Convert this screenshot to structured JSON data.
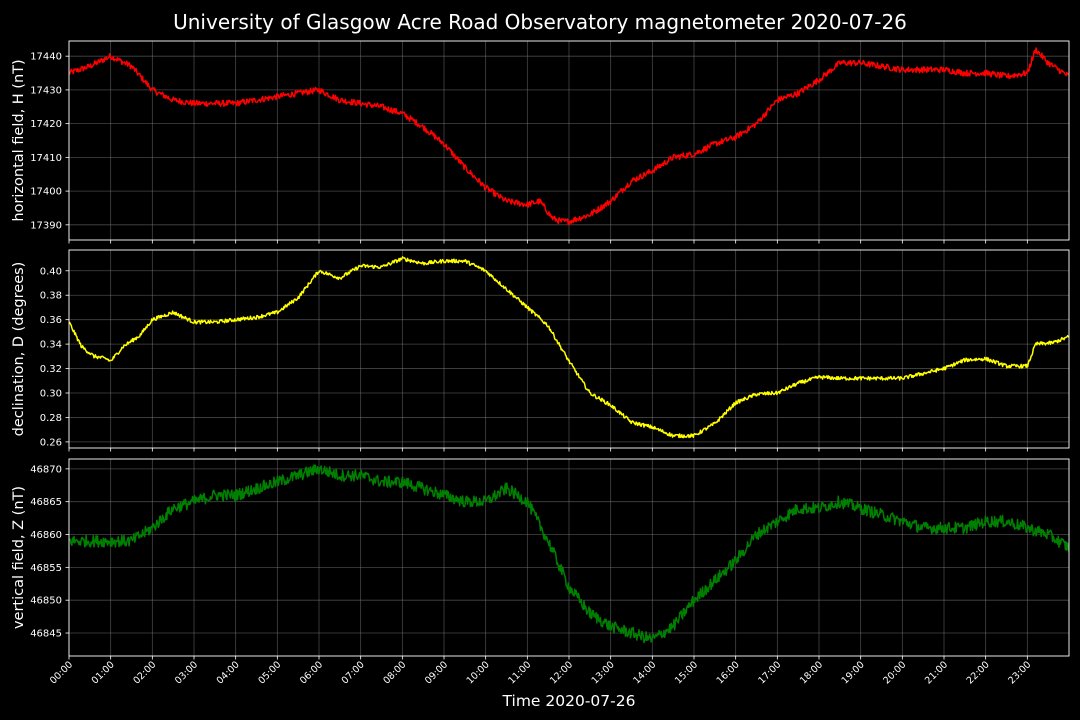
{
  "title": "University of Glasgow Acre Road Observatory magnetometer 2020-07-26",
  "xlabel": "Time 2020-07-26",
  "x_ticks": [
    "00:00",
    "01:00",
    "02:00",
    "03:00",
    "04:00",
    "05:00",
    "06:00",
    "07:00",
    "08:00",
    "09:00",
    "10:00",
    "11:00",
    "12:00",
    "13:00",
    "14:00",
    "15:00",
    "16:00",
    "17:00",
    "18:00",
    "19:00",
    "20:00",
    "21:00",
    "22:00",
    "23:00"
  ],
  "chart_data": [
    {
      "type": "line",
      "ylabel": "horizontal field, H (nT)",
      "ylim": [
        17385.5,
        17444.5
      ],
      "yticks": [
        17390,
        17400,
        17410,
        17420,
        17430,
        17440
      ],
      "xlim": [
        0,
        24
      ],
      "color": "#ff0000",
      "noise": 0.9,
      "x": [
        0,
        0.5,
        1.0,
        1.5,
        2.0,
        2.5,
        3.0,
        3.5,
        4.0,
        4.5,
        5.0,
        5.5,
        6.0,
        6.5,
        7.0,
        7.5,
        8.0,
        8.5,
        9.0,
        9.5,
        10.0,
        10.5,
        11.0,
        11.3,
        11.6,
        11.8,
        12.0,
        12.5,
        13.0,
        13.5,
        14.0,
        14.5,
        15.0,
        15.5,
        16.0,
        16.5,
        17.0,
        17.5,
        18.0,
        18.5,
        19.0,
        19.5,
        20.0,
        20.5,
        21.0,
        21.5,
        22.0,
        22.5,
        23.0,
        23.2,
        23.5,
        24.0
      ],
      "y": [
        17435,
        17437,
        17440,
        17437,
        17430,
        17427,
        17426,
        17426,
        17426,
        17427,
        17428,
        17429,
        17430,
        17427,
        17426,
        17425,
        17423,
        17419,
        17414,
        17407,
        17401,
        17397,
        17396,
        17397,
        17392,
        17391,
        17391,
        17393,
        17397,
        17403,
        17406,
        17410,
        17411,
        17414,
        17416,
        17420,
        17427,
        17429,
        17433,
        17438,
        17438,
        17437,
        17436,
        17436,
        17436,
        17435,
        17435,
        17434,
        17435,
        17442,
        17438,
        17434
      ]
    },
    {
      "type": "line",
      "ylabel": "declination, D (degrees)",
      "ylim": [
        0.255,
        0.417
      ],
      "yticks": [
        0.26,
        0.28,
        0.3,
        0.32,
        0.34,
        0.36,
        0.38,
        0.4
      ],
      "xlim": [
        0,
        24
      ],
      "color": "#ffff00",
      "noise": 0.0015,
      "x": [
        0,
        0.3,
        0.6,
        0.9,
        1.0,
        1.3,
        1.7,
        2.0,
        2.5,
        3.0,
        3.5,
        4.0,
        4.5,
        5.0,
        5.5,
        6.0,
        6.5,
        7.0,
        7.5,
        8.0,
        8.5,
        9.0,
        9.5,
        10.0,
        10.5,
        11.0,
        11.5,
        12.0,
        12.5,
        13.0,
        13.5,
        14.0,
        14.5,
        15.0,
        15.5,
        16.0,
        16.5,
        17.0,
        17.5,
        18.0,
        18.5,
        19.0,
        19.5,
        20.0,
        20.5,
        21.0,
        21.5,
        22.0,
        22.5,
        23.0,
        23.2,
        23.6,
        24.0
      ],
      "y": [
        0.358,
        0.338,
        0.33,
        0.328,
        0.326,
        0.338,
        0.347,
        0.36,
        0.366,
        0.358,
        0.358,
        0.36,
        0.362,
        0.366,
        0.378,
        0.4,
        0.394,
        0.404,
        0.403,
        0.41,
        0.406,
        0.408,
        0.408,
        0.4,
        0.385,
        0.37,
        0.355,
        0.326,
        0.3,
        0.29,
        0.276,
        0.272,
        0.265,
        0.265,
        0.275,
        0.292,
        0.299,
        0.3,
        0.308,
        0.313,
        0.312,
        0.312,
        0.312,
        0.312,
        0.316,
        0.32,
        0.327,
        0.328,
        0.322,
        0.322,
        0.34,
        0.341,
        0.346
      ]
    },
    {
      "type": "line",
      "ylabel": "vertical field, Z (nT)",
      "ylim": [
        46841.5,
        46871.5
      ],
      "yticks": [
        46845,
        46850,
        46855,
        46860,
        46865,
        46870
      ],
      "xlim": [
        0,
        24
      ],
      "color": "#008000",
      "noise": 0.9,
      "x": [
        0,
        0.5,
        1.0,
        1.5,
        2.0,
        2.5,
        3.0,
        3.5,
        4.0,
        4.5,
        5.0,
        5.5,
        6.0,
        6.5,
        7.0,
        7.5,
        8.0,
        8.5,
        9.0,
        9.5,
        10.0,
        10.5,
        11.0,
        11.5,
        12.0,
        12.5,
        13.0,
        13.5,
        14.0,
        14.5,
        15.0,
        15.5,
        16.0,
        16.5,
        17.0,
        17.5,
        18.0,
        18.5,
        19.0,
        19.5,
        20.0,
        20.5,
        21.0,
        21.5,
        22.0,
        22.5,
        23.0,
        23.5,
        24.0
      ],
      "y": [
        46859,
        46859,
        46859,
        46859,
        46861,
        46864,
        46865,
        46866,
        46866,
        46867,
        46868,
        46869,
        46870,
        46869,
        46869,
        46868,
        46868,
        46867,
        46866,
        46865,
        46865,
        46867,
        46865,
        46859,
        46852,
        46848,
        46846,
        46845,
        46844,
        46846,
        46850,
        46853,
        46856,
        46860,
        46862,
        46864,
        46864,
        46865,
        46864,
        46863,
        46862,
        46861,
        46861,
        46861,
        46862,
        46862,
        46861,
        46860,
        46858
      ]
    }
  ]
}
